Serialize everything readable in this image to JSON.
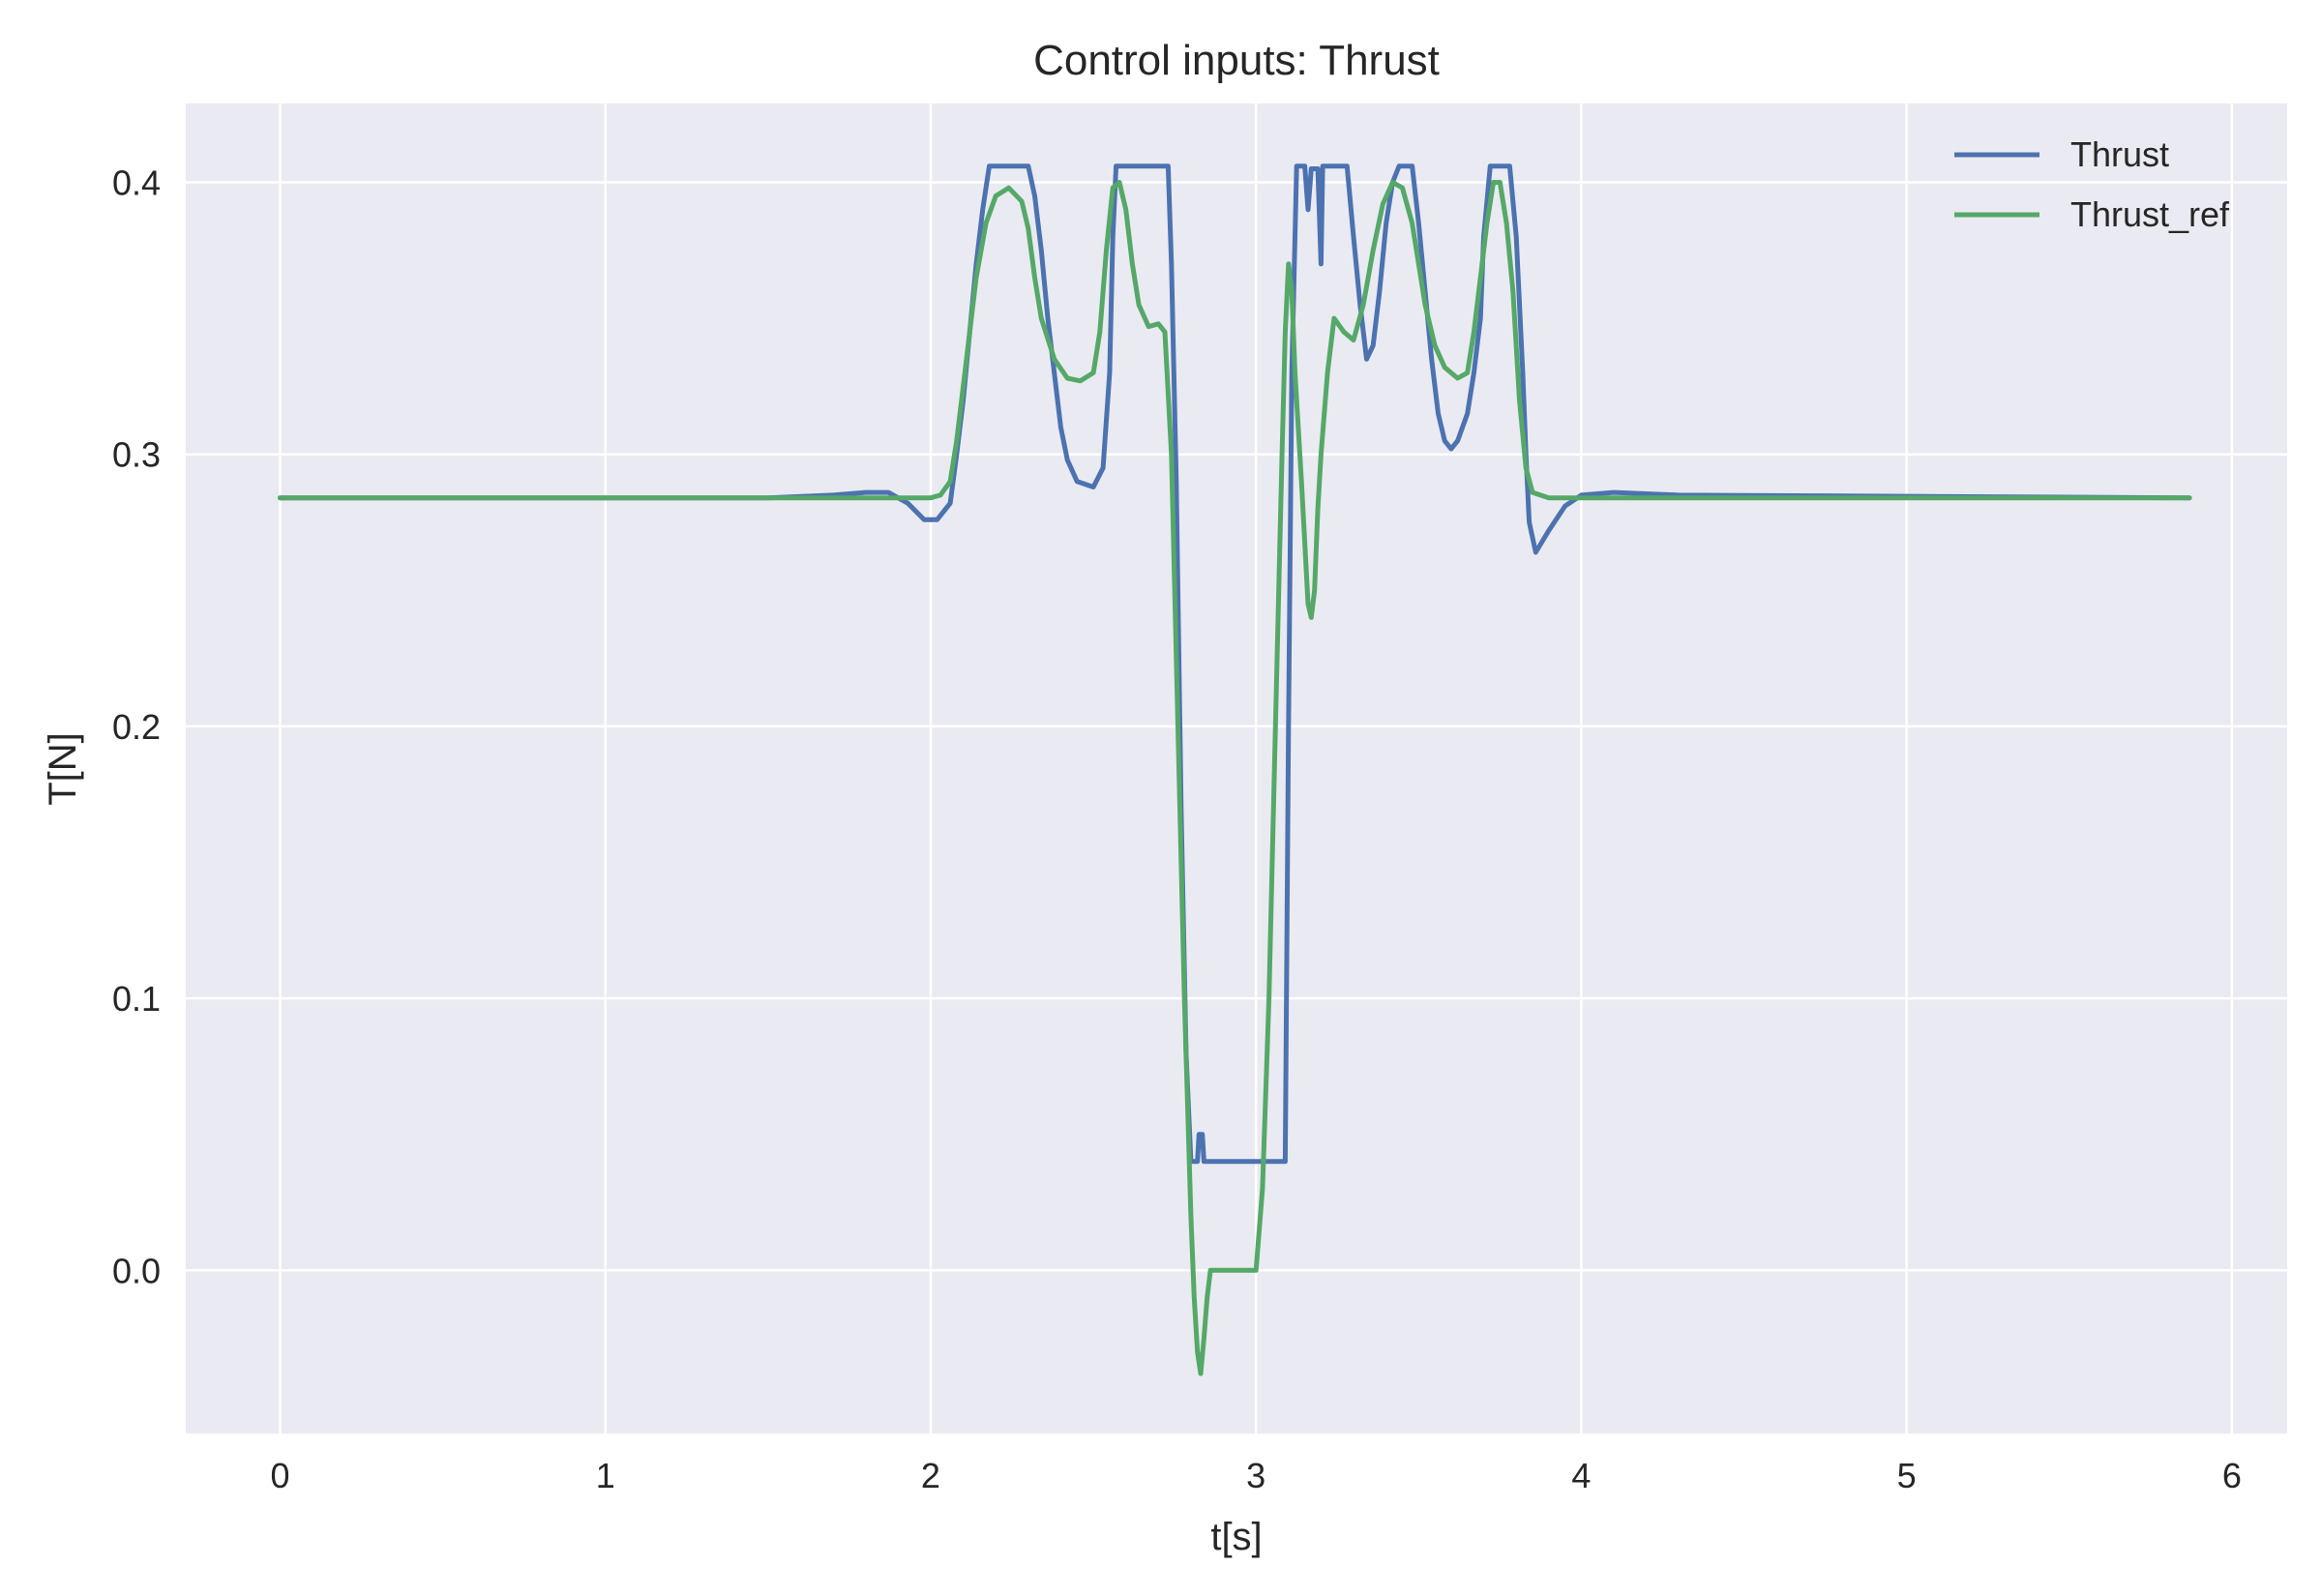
{
  "chart_data": {
    "type": "line",
    "title": "Control inputs: Thrust",
    "xlabel": "t[s]",
    "ylabel": "T[N]",
    "xlim": [
      -0.29,
      6.17
    ],
    "ylim": [
      -0.06,
      0.429
    ],
    "xticks": [
      0,
      1,
      2,
      3,
      4,
      5,
      6
    ],
    "xtick_labels": [
      "0",
      "1",
      "2",
      "3",
      "4",
      "5",
      "6"
    ],
    "yticks": [
      0.0,
      0.1,
      0.2,
      0.3,
      0.4
    ],
    "ytick_labels": [
      "0.0",
      "0.1",
      "0.2",
      "0.3",
      "0.4"
    ],
    "grid": true,
    "legend_position": "top-right",
    "colors": {
      "background": "#eaeaf2",
      "grid": "#ffffff",
      "thrust": "#4c72b0",
      "thrust_ref": "#55a868"
    },
    "series": [
      {
        "name": "Thrust",
        "color": "#4c72b0",
        "points": [
          [
            0,
            0.284
          ],
          [
            1.5,
            0.284
          ],
          [
            1.7,
            0.285
          ],
          [
            1.8,
            0.286
          ],
          [
            1.87,
            0.286
          ],
          [
            1.93,
            0.282
          ],
          [
            1.98,
            0.276
          ],
          [
            2.02,
            0.276
          ],
          [
            2.06,
            0.282
          ],
          [
            2.08,
            0.3
          ],
          [
            2.1,
            0.32
          ],
          [
            2.12,
            0.345
          ],
          [
            2.14,
            0.37
          ],
          [
            2.16,
            0.39
          ],
          [
            2.18,
            0.406
          ],
          [
            2.3,
            0.406
          ],
          [
            2.32,
            0.395
          ],
          [
            2.34,
            0.375
          ],
          [
            2.36,
            0.35
          ],
          [
            2.38,
            0.33
          ],
          [
            2.4,
            0.31
          ],
          [
            2.42,
            0.298
          ],
          [
            2.45,
            0.29
          ],
          [
            2.5,
            0.288
          ],
          [
            2.53,
            0.295
          ],
          [
            2.55,
            0.33
          ],
          [
            2.56,
            0.38
          ],
          [
            2.57,
            0.406
          ],
          [
            2.73,
            0.406
          ],
          [
            2.74,
            0.37
          ],
          [
            2.755,
            0.29
          ],
          [
            2.77,
            0.17
          ],
          [
            2.785,
            0.08
          ],
          [
            2.8,
            0.04
          ],
          [
            2.82,
            0.04
          ],
          [
            2.825,
            0.05
          ],
          [
            2.835,
            0.05
          ],
          [
            2.84,
            0.04
          ],
          [
            3.09,
            0.04
          ],
          [
            3.1,
            0.2
          ],
          [
            3.11,
            0.33
          ],
          [
            3.12,
            0.38
          ],
          [
            3.125,
            0.406
          ],
          [
            3.15,
            0.406
          ],
          [
            3.16,
            0.39
          ],
          [
            3.17,
            0.405
          ],
          [
            3.19,
            0.405
          ],
          [
            3.2,
            0.37
          ],
          [
            3.205,
            0.406
          ],
          [
            3.28,
            0.406
          ],
          [
            3.3,
            0.38
          ],
          [
            3.32,
            0.355
          ],
          [
            3.34,
            0.335
          ],
          [
            3.36,
            0.34
          ],
          [
            3.38,
            0.36
          ],
          [
            3.4,
            0.385
          ],
          [
            3.42,
            0.4
          ],
          [
            3.44,
            0.406
          ],
          [
            3.48,
            0.406
          ],
          [
            3.5,
            0.385
          ],
          [
            3.52,
            0.36
          ],
          [
            3.54,
            0.335
          ],
          [
            3.56,
            0.315
          ],
          [
            3.58,
            0.305
          ],
          [
            3.6,
            0.302
          ],
          [
            3.62,
            0.305
          ],
          [
            3.65,
            0.315
          ],
          [
            3.67,
            0.33
          ],
          [
            3.69,
            0.35
          ],
          [
            3.7,
            0.38
          ],
          [
            3.72,
            0.406
          ],
          [
            3.78,
            0.406
          ],
          [
            3.8,
            0.38
          ],
          [
            3.82,
            0.33
          ],
          [
            3.83,
            0.3
          ],
          [
            3.84,
            0.275
          ],
          [
            3.86,
            0.264
          ],
          [
            3.9,
            0.272
          ],
          [
            3.95,
            0.281
          ],
          [
            4.0,
            0.285
          ],
          [
            4.1,
            0.286
          ],
          [
            4.3,
            0.285
          ],
          [
            5.87,
            0.284
          ]
        ]
      },
      {
        "name": "Thrust_ref",
        "color": "#55a868",
        "points": [
          [
            0,
            0.284
          ],
          [
            2.0,
            0.284
          ],
          [
            2.03,
            0.285
          ],
          [
            2.06,
            0.29
          ],
          [
            2.08,
            0.305
          ],
          [
            2.1,
            0.325
          ],
          [
            2.12,
            0.345
          ],
          [
            2.14,
            0.365
          ],
          [
            2.17,
            0.385
          ],
          [
            2.2,
            0.395
          ],
          [
            2.24,
            0.398
          ],
          [
            2.28,
            0.393
          ],
          [
            2.3,
            0.383
          ],
          [
            2.32,
            0.365
          ],
          [
            2.34,
            0.35
          ],
          [
            2.38,
            0.335
          ],
          [
            2.42,
            0.328
          ],
          [
            2.46,
            0.327
          ],
          [
            2.5,
            0.33
          ],
          [
            2.52,
            0.345
          ],
          [
            2.54,
            0.375
          ],
          [
            2.56,
            0.398
          ],
          [
            2.58,
            0.4
          ],
          [
            2.6,
            0.39
          ],
          [
            2.62,
            0.37
          ],
          [
            2.64,
            0.355
          ],
          [
            2.67,
            0.347
          ],
          [
            2.7,
            0.348
          ],
          [
            2.72,
            0.345
          ],
          [
            2.74,
            0.3
          ],
          [
            2.76,
            0.2
          ],
          [
            2.78,
            0.1
          ],
          [
            2.8,
            0.02
          ],
          [
            2.81,
            -0.01
          ],
          [
            2.82,
            -0.03
          ],
          [
            2.83,
            -0.038
          ],
          [
            2.84,
            -0.025
          ],
          [
            2.85,
            -0.01
          ],
          [
            2.86,
            0.0
          ],
          [
            3.0,
            0.0
          ],
          [
            3.02,
            0.03
          ],
          [
            3.04,
            0.1
          ],
          [
            3.06,
            0.2
          ],
          [
            3.08,
            0.3
          ],
          [
            3.09,
            0.345
          ],
          [
            3.1,
            0.37
          ],
          [
            3.11,
            0.36
          ],
          [
            3.12,
            0.33
          ],
          [
            3.14,
            0.29
          ],
          [
            3.16,
            0.245
          ],
          [
            3.17,
            0.24
          ],
          [
            3.18,
            0.25
          ],
          [
            3.19,
            0.28
          ],
          [
            3.2,
            0.3
          ],
          [
            3.22,
            0.33
          ],
          [
            3.24,
            0.35
          ],
          [
            3.27,
            0.345
          ],
          [
            3.3,
            0.342
          ],
          [
            3.33,
            0.355
          ],
          [
            3.36,
            0.375
          ],
          [
            3.39,
            0.392
          ],
          [
            3.42,
            0.4
          ],
          [
            3.45,
            0.398
          ],
          [
            3.48,
            0.385
          ],
          [
            3.5,
            0.37
          ],
          [
            3.52,
            0.355
          ],
          [
            3.55,
            0.34
          ],
          [
            3.58,
            0.332
          ],
          [
            3.62,
            0.328
          ],
          [
            3.65,
            0.33
          ],
          [
            3.67,
            0.345
          ],
          [
            3.69,
            0.365
          ],
          [
            3.71,
            0.385
          ],
          [
            3.73,
            0.4
          ],
          [
            3.75,
            0.4
          ],
          [
            3.77,
            0.385
          ],
          [
            3.79,
            0.36
          ],
          [
            3.81,
            0.32
          ],
          [
            3.83,
            0.295
          ],
          [
            3.85,
            0.286
          ],
          [
            3.9,
            0.284
          ],
          [
            5.87,
            0.284
          ]
        ]
      }
    ]
  }
}
